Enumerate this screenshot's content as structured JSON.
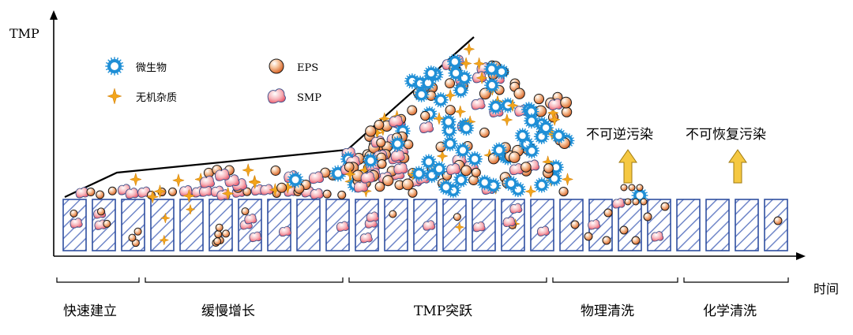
{
  "axes": {
    "y_label": "TMP",
    "x_label": "时间"
  },
  "legend": {
    "items": [
      {
        "key": "microbe",
        "label": "微生物",
        "icon": "microbe-icon"
      },
      {
        "key": "eps",
        "label": "EPS",
        "icon": "eps-particle-icon"
      },
      {
        "key": "inorganic",
        "label": "无机杂质",
        "icon": "inorganic-sparkle-icon"
      },
      {
        "key": "smp",
        "label": "SMP",
        "icon": "smp-blob-icon"
      }
    ]
  },
  "annotations": {
    "irreversible": "不可逆污染",
    "irrecoverable": "不可恢复污染"
  },
  "stages": [
    {
      "label": "快速建立"
    },
    {
      "label": "缓慢增长"
    },
    {
      "label": "TMP突跃"
    },
    {
      "label": "物理清洗"
    },
    {
      "label": "化学清洗"
    }
  ],
  "colors": {
    "membrane_stroke": "#2f4fa0",
    "hatch": "#6f86c8",
    "microbe_ring": "#1f8fd6",
    "eps_fill": "#e07a3a",
    "smp_fill": "#ef6a7a",
    "sparkle": "#f2a51c",
    "arrow_fill": "#f5c842"
  }
}
